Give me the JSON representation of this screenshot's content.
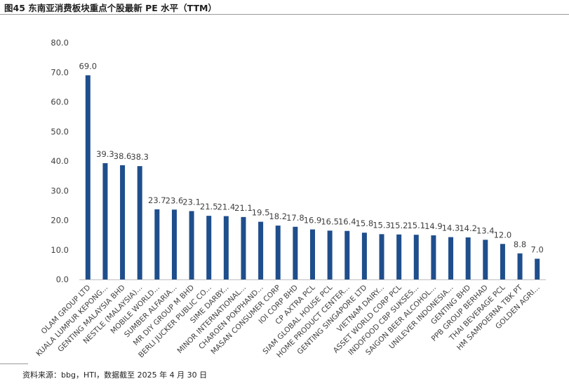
{
  "title": "图45 东南亚消费板块重点个股最新 PE 水平（TTM）",
  "source": "资料来源：bbg，HTI，数据截至 2025 年 4 月 30 日",
  "colors": {
    "bar": "#1f4e8c",
    "axis": "#bfbfbf",
    "text": "#404040"
  },
  "chart_data": {
    "type": "bar",
    "ylim": [
      0,
      80
    ],
    "yticks": [
      "0.0",
      "10.0",
      "20.0",
      "30.0",
      "40.0",
      "50.0",
      "60.0",
      "70.0",
      "80.0"
    ],
    "grid": false,
    "categories": [
      "OLAM GROUP LTD",
      "KUALA LUMPUR KEPONG...",
      "GENTING MALAYSIA BHD",
      "NESTLE (MALAYSIA)...",
      "MOBILE WORLD...",
      "SUMBER ALFARIA...",
      "MR DIY GROUP M BHD",
      "BERLI JUCKER PUBLIC CO...",
      "SIME DARBY...",
      "MINOR INTERNATIONAL...",
      "CHAROEN POKPHAND...",
      "MASAN CONSUMER CORP",
      "IOI CORP BHD",
      "CP AXTRA PCL",
      "SIAM GLOBAL HOUSE PCL",
      "HOME PRODUCT CENTER...",
      "GENTING SINGAPORE LTD",
      "VIETNAM DAIRY...",
      "ASSET WORLD CORP PCL",
      "INDOFOOD CBP SUKSES...",
      "SAIGON BEER ALCOHOL...",
      "UNILEVER INDONESIA...",
      "GENTING BHD",
      "PPB GROUP BERHAD",
      "THAI BEVERAGE PCL",
      "HM SAMPOERNA TBK PT",
      "GOLDEN AGRI..."
    ],
    "values": [
      69.0,
      39.3,
      38.6,
      38.3,
      23.7,
      23.6,
      23.1,
      21.5,
      21.4,
      21.1,
      19.5,
      18.2,
      17.8,
      16.9,
      16.5,
      16.4,
      15.8,
      15.3,
      15.2,
      15.1,
      14.9,
      14.3,
      14.2,
      13.4,
      12.0,
      8.8,
      7.0
    ],
    "data_labels": [
      "69.0",
      "39.3",
      "38.6",
      "38.3",
      "23.7",
      "23.6",
      "23.1",
      "21.5",
      "21.4",
      "21.1",
      "19.5",
      "18.2",
      "17.8",
      "16.9",
      "16.5",
      "16.4",
      "15.8",
      "15.3",
      "15.2",
      "15.1",
      "14.9",
      "14.3",
      "14.2",
      "13.4",
      "12.0",
      "8.8",
      "7.0"
    ]
  }
}
